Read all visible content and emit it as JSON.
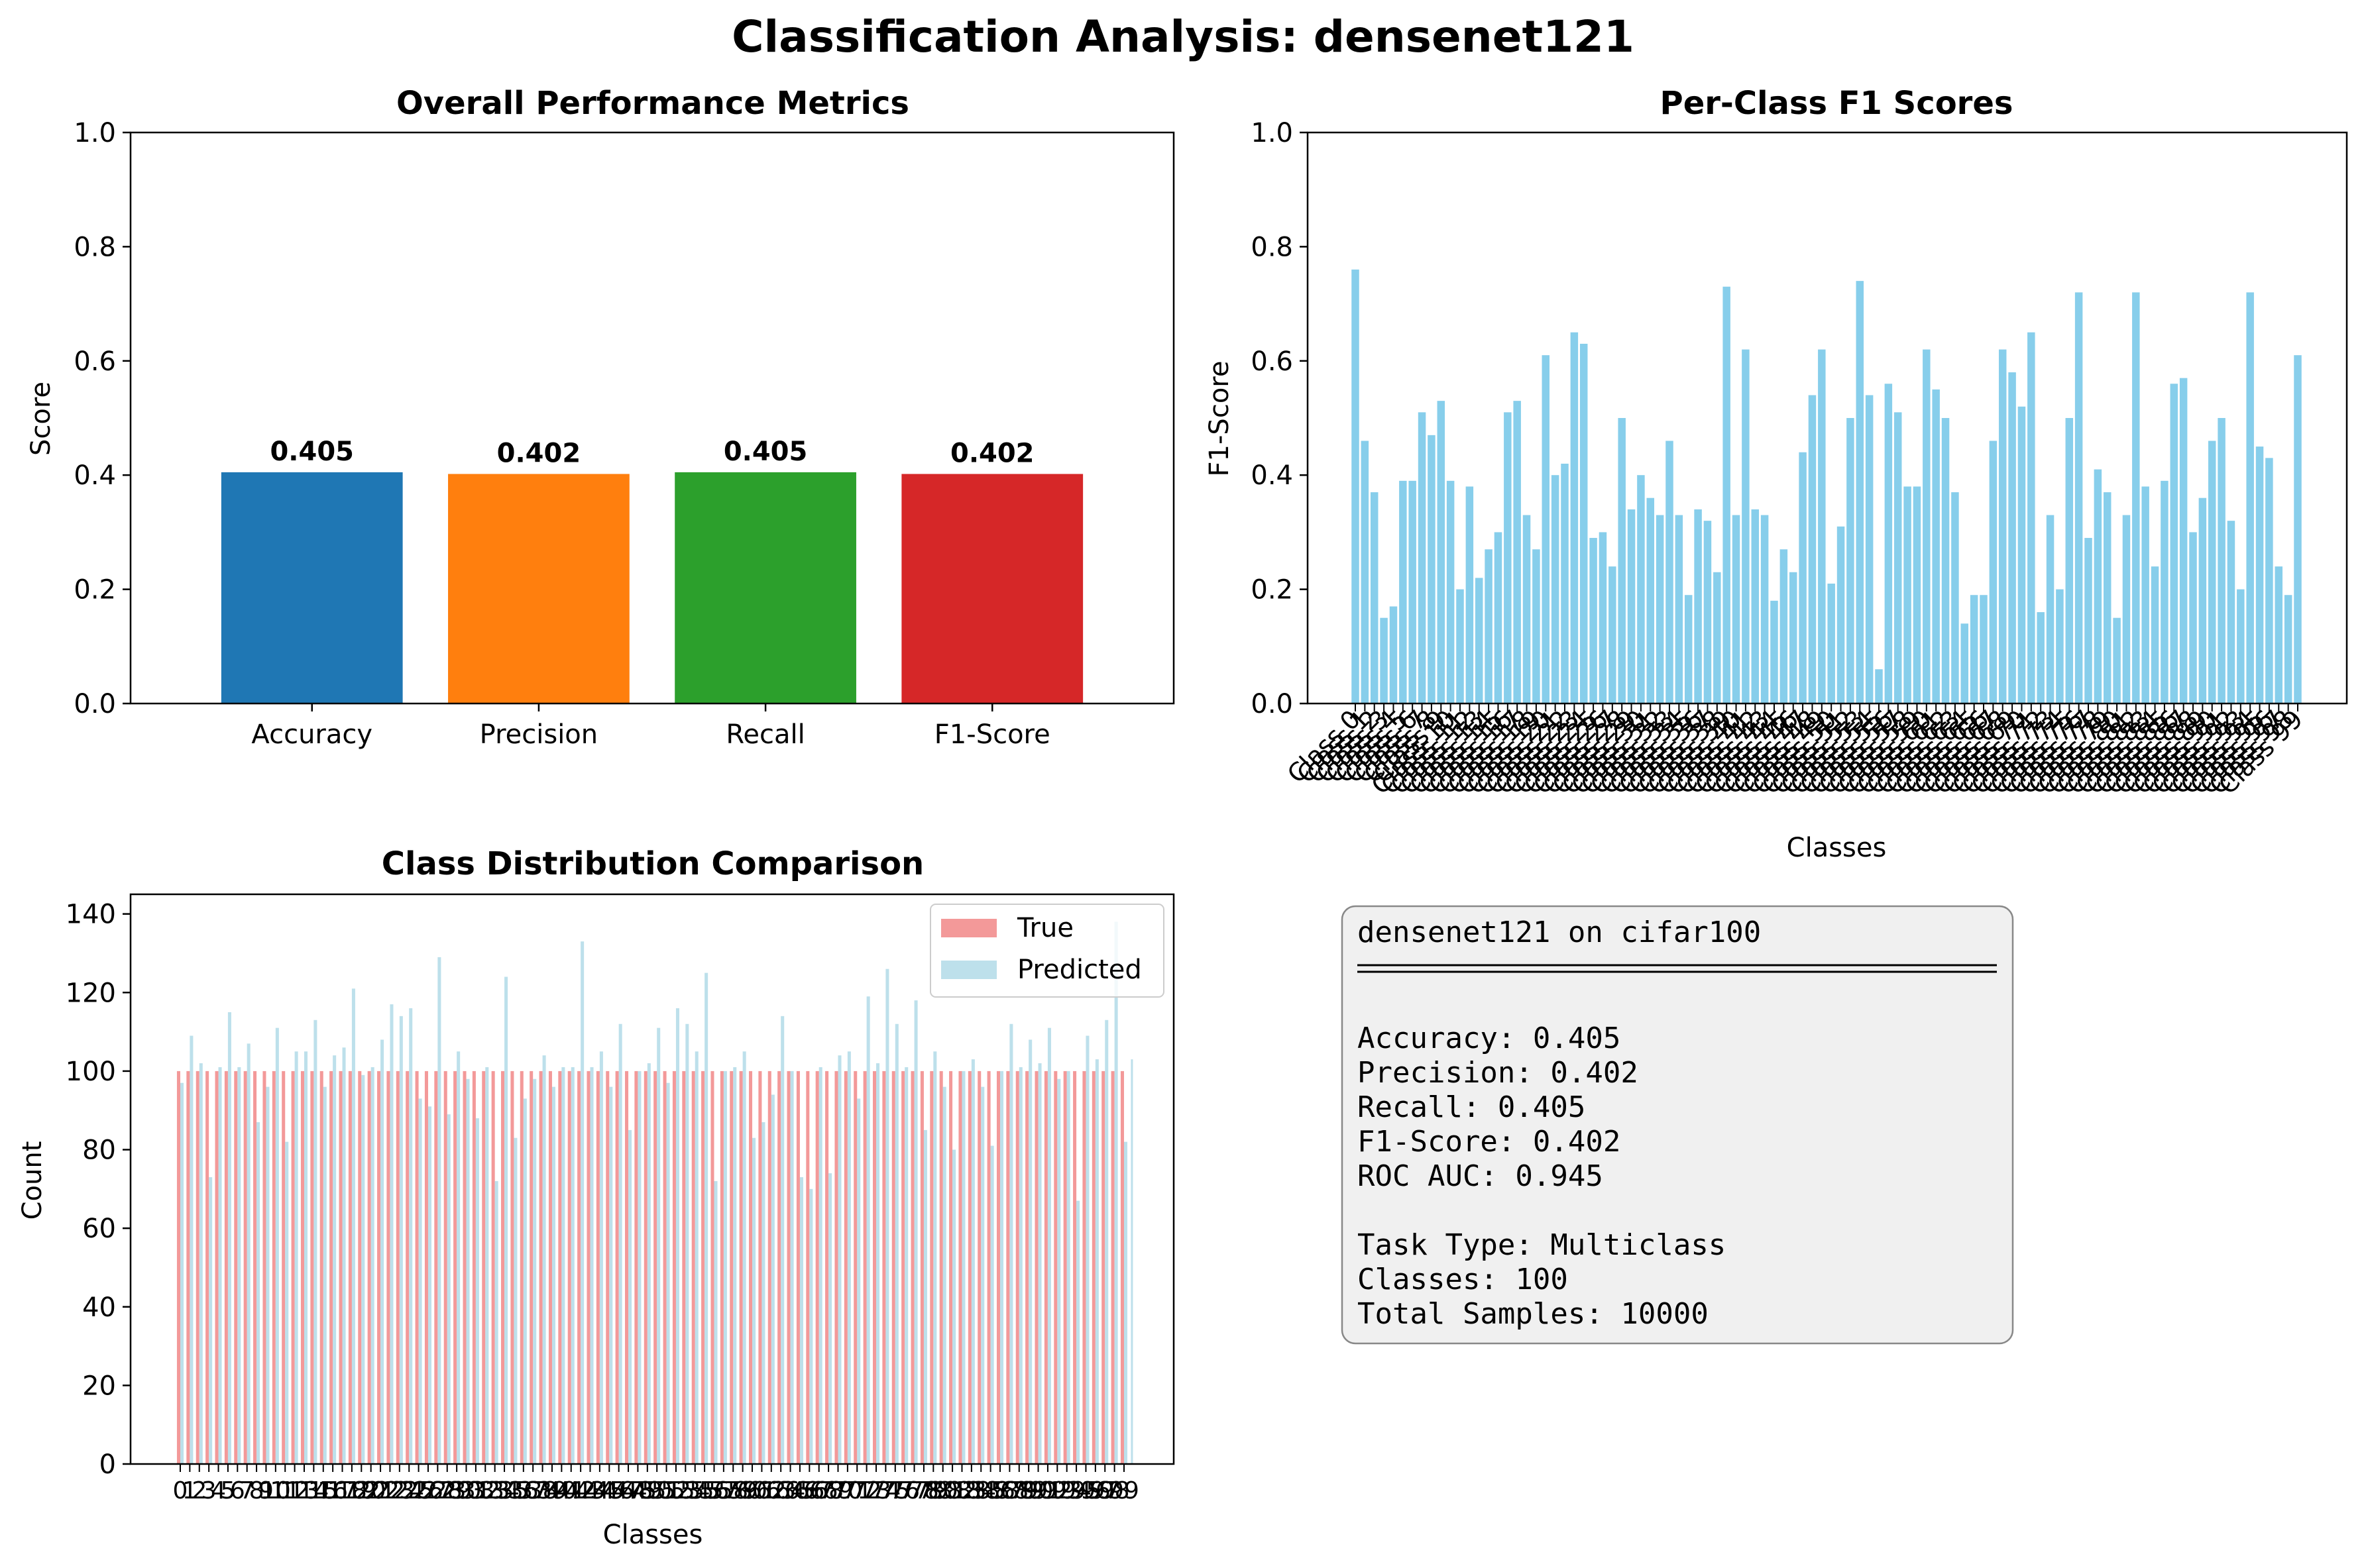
{
  "figure": {
    "title": "Classification Analysis: densenet121"
  },
  "chart_data": [
    {
      "type": "bar",
      "title": "Overall Performance Metrics",
      "xlabel": "",
      "ylabel": "Score",
      "ylim": [
        0,
        1
      ],
      "yticks": [
        "0.0",
        "0.2",
        "0.4",
        "0.6",
        "0.8",
        "1.0"
      ],
      "categories": [
        "Accuracy",
        "Precision",
        "Recall",
        "F1-Score"
      ],
      "values": [
        0.405,
        0.402,
        0.405,
        0.402
      ],
      "value_labels": [
        "0.405",
        "0.402",
        "0.405",
        "0.402"
      ],
      "colors": [
        "#1f77b4",
        "#ff7f0e",
        "#2ca02c",
        "#d62728"
      ]
    },
    {
      "type": "bar",
      "title": "Per-Class F1 Scores",
      "xlabel": "Classes",
      "ylabel": "F1-Score",
      "ylim": [
        0,
        1
      ],
      "yticks": [
        "0.0",
        "0.2",
        "0.4",
        "0.6",
        "0.8",
        "1.0"
      ],
      "color": "#87ceeb",
      "tick_prefix": "Class ",
      "values": [
        0.76,
        0.46,
        0.37,
        0.15,
        0.17,
        0.39,
        0.39,
        0.51,
        0.47,
        0.53,
        0.39,
        0.2,
        0.38,
        0.22,
        0.27,
        0.3,
        0.51,
        0.53,
        0.33,
        0.27,
        0.61,
        0.4,
        0.42,
        0.65,
        0.63,
        0.29,
        0.3,
        0.24,
        0.5,
        0.34,
        0.4,
        0.36,
        0.33,
        0.46,
        0.33,
        0.19,
        0.34,
        0.32,
        0.23,
        0.73,
        0.33,
        0.62,
        0.34,
        0.33,
        0.18,
        0.27,
        0.23,
        0.44,
        0.54,
        0.62,
        0.21,
        0.31,
        0.5,
        0.74,
        0.54,
        0.06,
        0.56,
        0.51,
        0.38,
        0.38,
        0.62,
        0.55,
        0.5,
        0.37,
        0.14,
        0.19,
        0.19,
        0.46,
        0.62,
        0.58,
        0.52,
        0.65,
        0.16,
        0.33,
        0.2,
        0.5,
        0.72,
        0.29,
        0.41,
        0.37,
        0.15,
        0.33,
        0.72,
        0.38,
        0.24,
        0.39,
        0.56,
        0.57,
        0.3,
        0.36,
        0.46,
        0.5,
        0.32,
        0.2,
        0.72,
        0.45,
        0.43,
        0.24,
        0.19,
        0.61
      ]
    },
    {
      "type": "bar",
      "title": "Class Distribution Comparison",
      "xlabel": "Classes",
      "ylabel": "Count",
      "ylim": [
        0,
        145
      ],
      "yticks": [
        "0",
        "20",
        "40",
        "60",
        "80",
        "100",
        "120",
        "140"
      ],
      "legend": "top-right",
      "series": [
        {
          "name": "True",
          "color": "#f08080",
          "values": [
            100,
            100,
            100,
            100,
            100,
            100,
            100,
            100,
            100,
            100,
            100,
            100,
            100,
            100,
            100,
            100,
            100,
            100,
            100,
            100,
            100,
            100,
            100,
            100,
            100,
            100,
            100,
            100,
            100,
            100,
            100,
            100,
            100,
            100,
            100,
            100,
            100,
            100,
            100,
            100,
            100,
            100,
            100,
            100,
            100,
            100,
            100,
            100,
            100,
            100,
            100,
            100,
            100,
            100,
            100,
            100,
            100,
            100,
            100,
            100,
            100,
            100,
            100,
            100,
            100,
            100,
            100,
            100,
            100,
            100,
            100,
            100,
            100,
            100,
            100,
            100,
            100,
            100,
            100,
            100,
            100,
            100,
            100,
            100,
            100,
            100,
            100,
            100,
            100,
            100,
            100,
            100,
            100,
            100,
            100,
            100,
            100,
            100,
            100,
            100
          ]
        },
        {
          "name": "Predicted",
          "color": "#add8e6",
          "values": [
            97,
            109,
            102,
            73,
            101,
            115,
            101,
            107,
            87,
            96,
            111,
            82,
            105,
            105,
            113,
            96,
            104,
            106,
            121,
            99,
            101,
            108,
            117,
            114,
            116,
            93,
            91,
            129,
            89,
            105,
            98,
            88,
            101,
            72,
            124,
            83,
            93,
            98,
            104,
            96,
            101,
            101,
            133,
            101,
            105,
            96,
            112,
            85,
            100,
            102,
            111,
            97,
            116,
            112,
            105,
            125,
            72,
            100,
            101,
            105,
            83,
            87,
            94,
            114,
            100,
            73,
            70,
            101,
            74,
            104,
            105,
            93,
            119,
            102,
            126,
            112,
            101,
            118,
            85,
            105,
            96,
            80,
            100,
            103,
            96,
            81,
            100,
            112,
            101,
            108,
            102,
            111,
            98,
            100,
            67,
            109,
            103,
            113,
            138,
            82
          ]
        }
      ],
      "extra_predicted_last": 103
    }
  ],
  "summary": {
    "title": "densenet121 on cifar100",
    "lines": [
      "Accuracy: 0.405",
      "Precision: 0.402",
      "Recall: 0.405",
      "F1-Score: 0.402",
      "ROC AUC: 0.945"
    ],
    "lines2": [
      "Task Type: Multiclass",
      "Classes: 100",
      "Total Samples: 10000"
    ]
  }
}
